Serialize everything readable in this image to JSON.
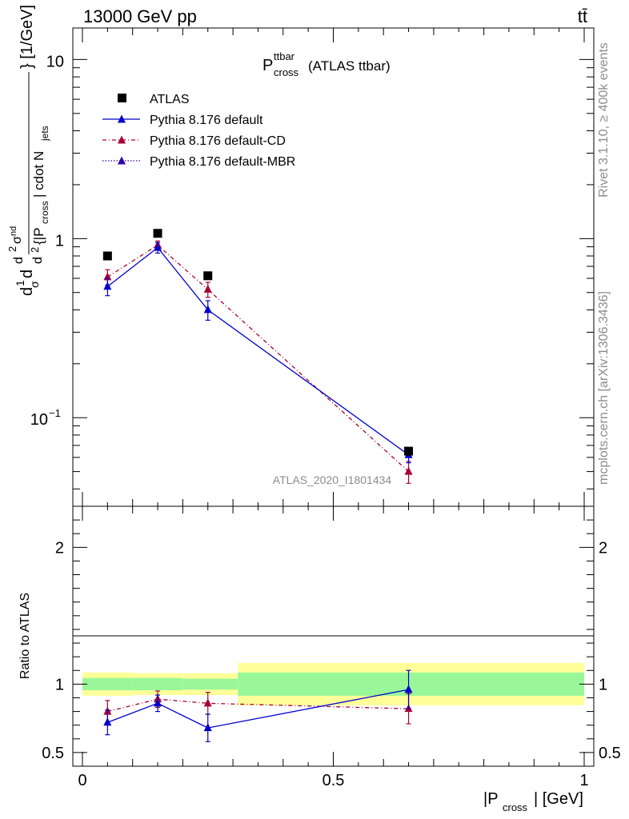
{
  "header": {
    "beam": "13000 GeV pp",
    "process": "tt̄"
  },
  "side": {
    "rivet": "Rivet 3.1.10, ≥ 400k events",
    "mcplots": "mcplots.cern.ch [arXiv:1306.3436]"
  },
  "title": {
    "main": "P",
    "sup": "ttbar",
    "sub": "cross",
    "suffix": "(ATLAS ttbar)"
  },
  "watermark": "ATLAS_2020_I1801434",
  "legend": [
    {
      "label": "ATLAS"
    },
    {
      "label": "Pythia 8.176 default"
    },
    {
      "label": "Pythia 8.176 default-CD"
    },
    {
      "label": "Pythia 8.176 default-MBR"
    }
  ],
  "ylabel_main": "d^2σ^{nd}/d^2{|P_cross| cdot N_jets} [1/GeV]",
  "ylabel_ratio": "Ratio to ATLAS",
  "xlabel": {
    "pre": "|P",
    "sub": "cross",
    "post": "| [GeV]"
  },
  "colors": {
    "data": "#000000",
    "default": "#0000cc",
    "cd": "#aa0033",
    "mbr": "#3300aa",
    "band_inner": "#99f799",
    "band_outer": "#ffff99"
  },
  "chart_data": [
    {
      "type": "scatter",
      "panel": "main",
      "yscale": "log",
      "xlim": [
        0,
        1
      ],
      "ylim": [
        0.032,
        15
      ],
      "yticks": [
        {
          "v": 0.1,
          "label": "10",
          "exp": "−1"
        },
        {
          "v": 1,
          "label": "1"
        },
        {
          "v": 10,
          "label": "10"
        }
      ],
      "x": [
        0.05,
        0.15,
        0.25,
        0.65
      ],
      "series": [
        {
          "name": "ATLAS",
          "values": [
            0.8,
            1.07,
            0.62,
            0.065
          ],
          "errors": [
            0.02,
            0.03,
            0.02,
            0.004
          ]
        },
        {
          "name": "Pythia 8.176 default",
          "values": [
            0.54,
            0.89,
            0.4,
            0.062
          ],
          "errors": [
            0.06,
            0.06,
            0.05,
            0.006
          ]
        },
        {
          "name": "Pythia 8.176 default-CD",
          "values": [
            0.61,
            0.92,
            0.52,
            0.05
          ],
          "errors": [
            0.06,
            0.05,
            0.05,
            0.007
          ]
        }
      ]
    },
    {
      "type": "line",
      "panel": "ratio",
      "xlim": [
        0,
        1
      ],
      "ylim": [
        0.4,
        2.3
      ],
      "xticks": [
        {
          "v": 0,
          "label": "0"
        },
        {
          "v": 0.5,
          "label": "0.5"
        },
        {
          "v": 1,
          "label": "1"
        }
      ],
      "yticks": [
        {
          "v": 0.5,
          "label": "0.5"
        },
        {
          "v": 1,
          "label": "1"
        },
        {
          "v": 2,
          "label": "2"
        }
      ],
      "bins": [
        {
          "lo": 0.0,
          "hi": 0.1,
          "inner": [
            0.955,
            1.045
          ],
          "outer": [
            0.915,
            1.085
          ]
        },
        {
          "lo": 0.1,
          "hi": 0.2,
          "inner": [
            0.955,
            1.045
          ],
          "outer": [
            0.92,
            1.08
          ]
        },
        {
          "lo": 0.2,
          "hi": 0.31,
          "inner": [
            0.96,
            1.04
          ],
          "outer": [
            0.92,
            1.08
          ]
        },
        {
          "lo": 0.31,
          "hi": 1.0,
          "inner": [
            0.915,
            1.085
          ],
          "outer": [
            0.845,
            1.155
          ]
        }
      ],
      "x": [
        0.05,
        0.15,
        0.25,
        0.65
      ],
      "series": [
        {
          "name": "Pythia 8.176 default",
          "values": [
            0.72,
            0.86,
            0.68,
            0.96
          ],
          "errors": [
            0.09,
            0.06,
            0.1,
            0.14
          ]
        },
        {
          "name": "Pythia 8.176 default-CD",
          "values": [
            0.8,
            0.89,
            0.86,
            0.82
          ],
          "errors": [
            0.08,
            0.06,
            0.08,
            0.11
          ]
        }
      ]
    }
  ]
}
